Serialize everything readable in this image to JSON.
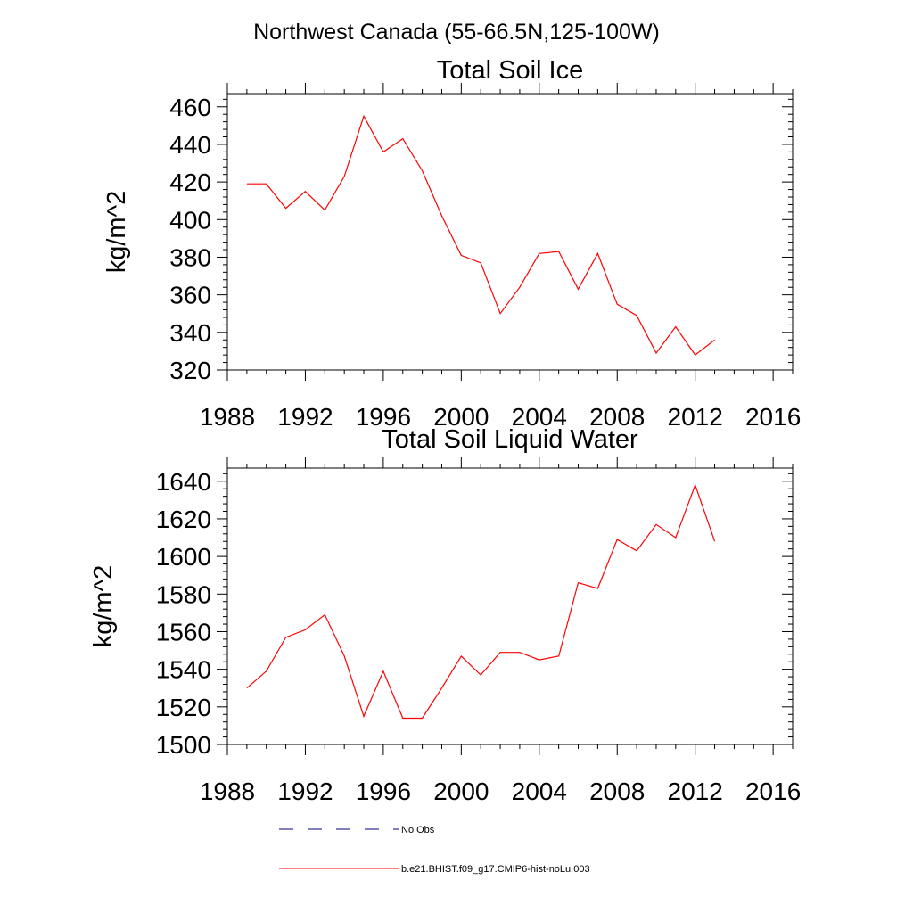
{
  "figure": {
    "title": "Northwest Canada (55-66.5N,125-100W)"
  },
  "chart_data": [
    {
      "type": "line",
      "title": "Total Soil Ice",
      "xlabel": "",
      "ylabel": "kg/m^2",
      "xlim": [
        1988,
        2017
      ],
      "ylim": [
        320,
        467
      ],
      "xticks": [
        1988,
        1992,
        1996,
        2000,
        2004,
        2008,
        2012,
        2016
      ],
      "yticks": [
        320,
        340,
        360,
        380,
        400,
        420,
        440,
        460
      ],
      "grid": false,
      "x": [
        1989,
        1990,
        1991,
        1992,
        1993,
        1994,
        1995,
        1996,
        1997,
        1998,
        1999,
        2000,
        2001,
        2002,
        2003,
        2004,
        2005,
        2006,
        2007,
        2008,
        2009,
        2010,
        2011,
        2012,
        2013
      ],
      "series": [
        {
          "name": "b.e21.BHIST.f09_g17.CMIP6-hist-noLu.003",
          "color": "#ff0000",
          "values": [
            419,
            419,
            406,
            415,
            405,
            423,
            455,
            436,
            443,
            426,
            402,
            381,
            377,
            350,
            364,
            382,
            383,
            363,
            382,
            355,
            349,
            329,
            343,
            328,
            336
          ]
        }
      ]
    },
    {
      "type": "line",
      "title": "Total Soil Liquid Water",
      "xlabel": "",
      "ylabel": "kg/m^2",
      "xlim": [
        1988,
        2017
      ],
      "ylim": [
        1500,
        1647
      ],
      "xticks": [
        1988,
        1992,
        1996,
        2000,
        2004,
        2008,
        2012,
        2016
      ],
      "yticks": [
        1500,
        1520,
        1540,
        1560,
        1580,
        1600,
        1620,
        1640
      ],
      "grid": false,
      "x": [
        1989,
        1990,
        1991,
        1992,
        1993,
        1994,
        1995,
        1996,
        1997,
        1998,
        1999,
        2000,
        2001,
        2002,
        2003,
        2004,
        2005,
        2006,
        2007,
        2008,
        2009,
        2010,
        2011,
        2012,
        2013
      ],
      "series": [
        {
          "name": "b.e21.BHIST.f09_g17.CMIP6-hist-noLu.003",
          "color": "#ff0000",
          "values": [
            1530,
            1539,
            1557,
            1561,
            1569,
            1547,
            1515,
            1539,
            1514,
            1514,
            1530,
            1547,
            1537,
            1549,
            1549,
            1545,
            1547,
            1586,
            1583,
            1609,
            1603,
            1617,
            1610,
            1638,
            1608
          ]
        }
      ]
    }
  ],
  "legend": {
    "placement": "bottom",
    "entries": [
      {
        "label": "No Obs",
        "style": "dashed",
        "color": "#000080"
      },
      {
        "label": "b.e21.BHIST.f09_g17.CMIP6-hist-noLu.003",
        "style": "solid",
        "color": "#ff0000"
      }
    ]
  }
}
